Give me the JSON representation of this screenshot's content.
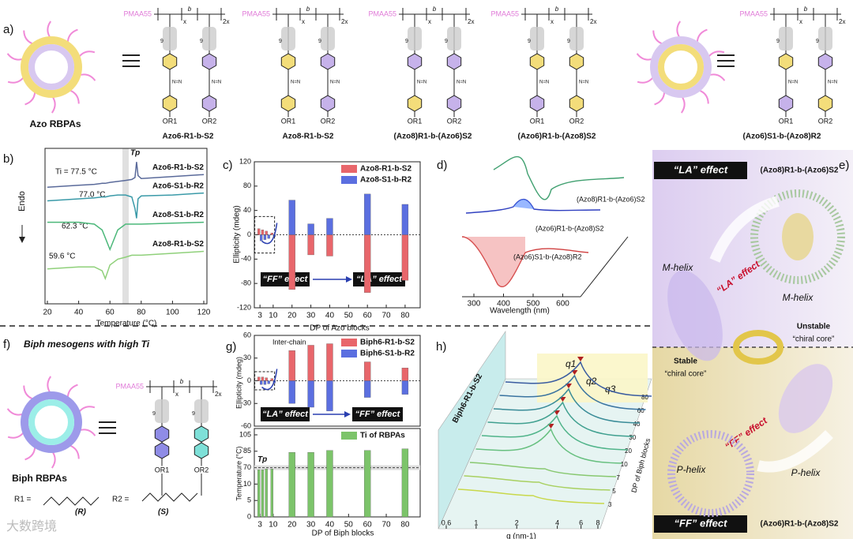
{
  "panel_labels": [
    "a)",
    "b)",
    "c)",
    "d)",
    "e)",
    "f)",
    "g)",
    "h)"
  ],
  "structure_texts": {
    "x": "x",
    "x2": "2x",
    "b": "b",
    "n": "9",
    "or1": "OR1",
    "or2": "OR2",
    "azo": "N=N"
  },
  "panel_a": {
    "left_label": "Azo RBPAs",
    "prefix": "PMAA55",
    "captions": [
      "Azo6-R1-b-S2",
      "Azo8-R1-b-S2",
      "(Azo8)R1-b-(Azo6)S2",
      "(Azo6)R1-b-(Azo8)S2",
      "(Azo6)S1-b-(Azo8)R2"
    ]
  },
  "panel_d": {
    "xlabel": "Wavelength (nm)",
    "xticks": [
      300,
      400,
      500,
      600
    ],
    "labels": [
      "(Azo8)R1-b-(Azo6)S2",
      "(Azo6)R1-b-(Azo8)S2",
      "(Azo6)S1-b-(Azo8)R2"
    ]
  },
  "panel_e": {
    "top_box": "“LA” effect",
    "top_name": "(Azo8)R1-b-(Azo6)S2",
    "m_helix": "M-helix",
    "la": "“LA” effect",
    "unstable": "Unstable",
    "chiral_core": "“chiral core”",
    "stable": "Stable",
    "ff": "“FF” effect",
    "p_helix": "P-helix",
    "bottom_box": "“FF” effect",
    "bottom_name": "(Azo6)R1-b-(Azo8)S2"
  },
  "panel_f": {
    "title": "Biph mesogens with high Ti",
    "left_label": "Biph RBPAs",
    "prefix": "PMAA55",
    "r1": "R1 =",
    "r2": "R2 =",
    "r_label": "(R)",
    "s_label": "(S)"
  },
  "panel_h": {
    "xlabel": "q (nm-1)",
    "xticks": [
      0.6,
      1,
      2,
      4,
      6,
      8
    ],
    "series_label": "Biph6-R1-b-S2",
    "depth_label": "DP of Biph blocks",
    "depth_ticks": [
      3,
      5,
      7,
      10,
      20,
      30,
      40,
      60,
      80
    ],
    "peaks": [
      "q1",
      "q2",
      "q3"
    ]
  },
  "watermark": "大数跨境",
  "chart_data": [
    {
      "type": "line",
      "x": [
        20,
        40,
        50,
        55,
        57,
        60,
        65,
        70,
        74,
        76,
        77,
        78,
        80,
        100,
        120
      ],
      "series": [
        {
          "name": "Azo6-R1-b-S2",
          "color": "#5a6a9a",
          "values": [
            8.0,
            8.1,
            8.15,
            8.2,
            8.2,
            8.25,
            8.3,
            8.35,
            8.4,
            8.5,
            9.3,
            8.6,
            8.45,
            8.55,
            8.65
          ]
        },
        {
          "name": "Azo6-S1-b-R2",
          "color": "#3a9aa8",
          "values": [
            7.3,
            7.4,
            7.45,
            7.5,
            7.5,
            7.55,
            7.6,
            7.6,
            7.5,
            6.9,
            6.4,
            7.4,
            7.55,
            7.6,
            7.7
          ]
        },
        {
          "name": "Azo8-S1-b-R2",
          "color": "#4cb87a",
          "values": [
            6.2,
            6.2,
            6.1,
            5.8,
            5.4,
            4.8,
            5.8,
            6.1,
            6.1,
            6.1,
            6.1,
            6.1,
            6.1,
            6.15,
            6.2
          ]
        },
        {
          "name": "Azo8-R1-b-S2",
          "color": "#8fd07a",
          "values": [
            3.8,
            3.9,
            3.9,
            3.7,
            3.3,
            4.0,
            4.3,
            4.4,
            4.5,
            4.5,
            4.5,
            4.5,
            4.5,
            4.6,
            4.7
          ]
        }
      ],
      "xlim": [
        20,
        120
      ],
      "xticks": [
        20,
        40,
        60,
        80,
        100,
        120
      ],
      "ylim": [
        2,
        10
      ],
      "xlabel": "Temperature (°C)",
      "ylabel": "Endo",
      "marker": "Tp",
      "marker_value": 70,
      "annotations": [
        "Ti = 77.5 °C",
        "77.0 °C",
        "62.3 °C",
        "59.6 °C"
      ]
    },
    {
      "type": "bar",
      "x": [
        3,
        5,
        7,
        10,
        20,
        30,
        40,
        60,
        80
      ],
      "series": [
        {
          "name": "Azo8-R1-b-S2",
          "color": "#e8666b",
          "values": [
            10,
            8,
            6,
            3,
            -90,
            -33,
            -35,
            -95,
            -75
          ]
        },
        {
          "name": "Azo8-S1-b-R2",
          "color": "#5b6fe0",
          "values": [
            -10,
            -8,
            -6,
            -3,
            57,
            18,
            27,
            67,
            50
          ]
        }
      ],
      "xlim": [
        0,
        88
      ],
      "xticks": [
        3,
        10,
        20,
        30,
        40,
        50,
        60,
        70,
        80
      ],
      "ylim": [
        -120,
        120
      ],
      "yticks": [
        -120,
        -80,
        -40,
        0,
        40,
        80,
        120
      ],
      "xlabel": "DP of Azo blocks",
      "ylabel": "Ellipticity (mdeg)",
      "annotations": [
        "“FF” effect",
        "“LA” effect"
      ]
    },
    {
      "type": "bar",
      "x": [
        3,
        5,
        7,
        10,
        20,
        30,
        40,
        60,
        80
      ],
      "series": [
        {
          "name": "Biph6-R1-b-S2",
          "color": "#e8666b",
          "values": [
            5,
            5,
            4,
            3,
            40,
            47,
            49,
            25,
            17
          ]
        },
        {
          "name": "Biph6-S1-b-R2",
          "color": "#5b6fe0",
          "values": [
            -5,
            -5,
            -4,
            -3,
            -30,
            -35,
            -40,
            -22,
            -18
          ]
        }
      ],
      "xlim": [
        0,
        88
      ],
      "ylim": [
        -60,
        60
      ],
      "yticks": [
        -60,
        -30,
        0,
        30,
        60
      ],
      "ylabel": "Ellipticity (mdeg)",
      "annotations": [
        "Inter-chain",
        "“LA” effect",
        "“FF” effect"
      ]
    },
    {
      "type": "bar",
      "x": [
        3,
        5,
        7,
        10,
        20,
        30,
        40,
        60,
        80
      ],
      "series": [
        {
          "name": "Ti of RBPAs",
          "color": "#7cc46a",
          "values": [
            62,
            62,
            65,
            65,
            84,
            84,
            86,
            86,
            88
          ]
        }
      ],
      "xlim": [
        0,
        88
      ],
      "xticks": [
        3,
        10,
        20,
        30,
        40,
        50,
        60,
        70,
        80
      ],
      "ylim": [
        0,
        105
      ],
      "yticks": [
        0,
        5,
        10,
        70,
        85,
        105
      ],
      "yscale": "broken",
      "xlabel": "DP of Biph blocks",
      "ylabel": "Temperature (°C)",
      "reference_label": "Tp",
      "reference_value": 70
    }
  ]
}
